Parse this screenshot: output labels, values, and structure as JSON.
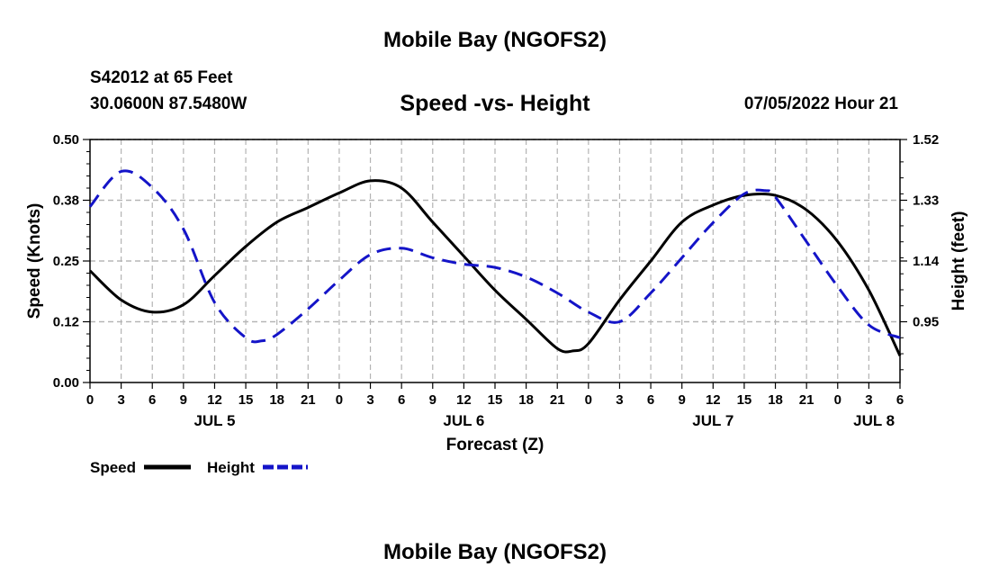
{
  "header": {
    "title": "Mobile Bay (NGOFS2)",
    "station": "S42012 at 65 Feet",
    "coords": "30.0600N  87.5480W",
    "subtitle": "Speed -vs- Height",
    "timestamp": "07/05/2022 Hour 21",
    "bottom_title": "Mobile Bay (NGOFS2)"
  },
  "colors": {
    "speed": "#000000",
    "height": "#1414c8",
    "grid": "#b4b4b4"
  },
  "chart_data": {
    "type": "line",
    "title": "Speed -vs- Height",
    "xlabel": "Forecast (Z)",
    "ylabel": "Speed (Knots)",
    "y2label": "Height (feet)",
    "x_range_hours": [
      0,
      78
    ],
    "ylim": [
      0,
      0.5
    ],
    "y2lim": [
      0.76,
      1.52
    ],
    "yticks": [
      "0.00",
      "0.12",
      "0.25",
      "0.38",
      "0.50"
    ],
    "yticks_values": [
      0,
      0.125,
      0.25,
      0.375,
      0.5
    ],
    "y2ticks": [
      "0.95",
      "1.14",
      "1.33",
      "1.52"
    ],
    "y2ticks_values": [
      0.95,
      1.14,
      1.33,
      1.52
    ],
    "xtick_labels": [
      "0",
      "3",
      "6",
      "9",
      "12",
      "15",
      "18",
      "21",
      "0",
      "3",
      "6",
      "9",
      "12",
      "15",
      "18",
      "21",
      "0",
      "3",
      "6",
      "9",
      "12",
      "15",
      "18",
      "21",
      "0",
      "3",
      "6"
    ],
    "day_labels": [
      {
        "label": "JUL 5",
        "hour": 12
      },
      {
        "label": "JUL 6",
        "hour": 36
      },
      {
        "label": "JUL 7",
        "hour": 60
      },
      {
        "label": "JUL 8",
        "hour": 75.5
      }
    ],
    "legend": [
      {
        "name": "Speed",
        "style": "solid"
      },
      {
        "name": "Height",
        "style": "dashed"
      }
    ],
    "series": [
      {
        "name": "Speed",
        "axis": "left",
        "x": [
          0,
          3,
          6,
          9,
          12,
          15,
          18,
          21,
          24,
          27,
          30,
          33,
          36,
          39,
          42,
          45,
          46.5,
          48,
          51,
          54,
          57,
          60,
          63,
          66,
          69,
          72,
          75,
          78
        ],
        "values": [
          0.23,
          0.17,
          0.145,
          0.16,
          0.22,
          0.28,
          0.33,
          0.36,
          0.39,
          0.415,
          0.4,
          0.33,
          0.26,
          0.19,
          0.13,
          0.07,
          0.065,
          0.08,
          0.17,
          0.25,
          0.33,
          0.365,
          0.385,
          0.385,
          0.355,
          0.29,
          0.19,
          0.055
        ]
      },
      {
        "name": "Height",
        "axis": "right",
        "x": [
          0,
          3,
          6,
          9,
          12,
          15,
          16.5,
          18,
          21,
          24,
          27,
          30,
          33,
          36,
          39,
          42,
          45,
          48,
          51,
          54,
          57,
          60,
          63,
          65,
          66,
          69,
          72,
          75,
          78
        ],
        "values": [
          1.31,
          1.42,
          1.37,
          1.24,
          1.01,
          0.9,
          0.89,
          0.91,
          0.99,
          1.08,
          1.16,
          1.18,
          1.15,
          1.13,
          1.12,
          1.09,
          1.04,
          0.98,
          0.95,
          1.04,
          1.15,
          1.26,
          1.35,
          1.36,
          1.34,
          1.2,
          1.06,
          0.94,
          0.9
        ]
      }
    ]
  }
}
